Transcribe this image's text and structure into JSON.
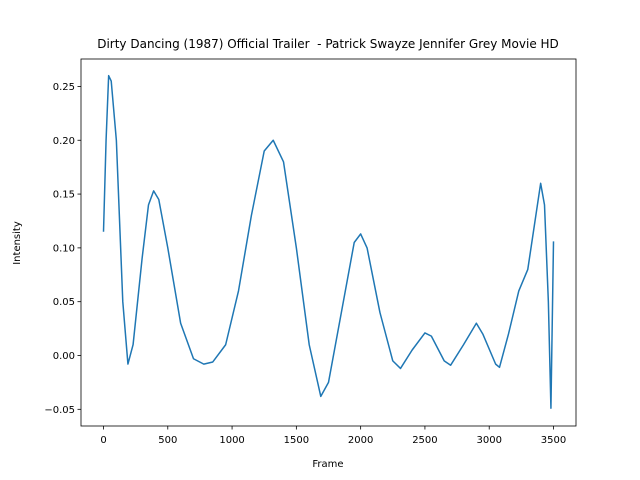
{
  "chart_data": {
    "type": "line",
    "title": "Dirty Dancing (1987) Official Trailer  - Patrick Swayze Jennifer Grey Movie HD",
    "xlabel": "Frame",
    "ylabel": "Intensity",
    "x": [
      0,
      20,
      40,
      60,
      100,
      150,
      190,
      230,
      300,
      350,
      390,
      430,
      500,
      600,
      700,
      780,
      850,
      950,
      1050,
      1150,
      1250,
      1320,
      1400,
      1500,
      1600,
      1690,
      1750,
      1850,
      1950,
      2000,
      2050,
      2150,
      2250,
      2310,
      2400,
      2500,
      2550,
      2650,
      2700,
      2800,
      2900,
      2950,
      3050,
      3080,
      3150,
      3230,
      3300,
      3350,
      3400,
      3430,
      3460,
      3480,
      3500
    ],
    "series": [
      {
        "name": "Intensity",
        "color": "#1f77b4",
        "values": [
          0.115,
          0.2,
          0.26,
          0.255,
          0.2,
          0.05,
          -0.008,
          0.01,
          0.09,
          0.14,
          0.153,
          0.145,
          0.1,
          0.03,
          -0.003,
          -0.008,
          -0.006,
          0.01,
          0.06,
          0.13,
          0.19,
          0.2,
          0.18,
          0.1,
          0.01,
          -0.038,
          -0.025,
          0.04,
          0.105,
          0.113,
          0.1,
          0.04,
          -0.005,
          -0.012,
          0.005,
          0.021,
          0.018,
          -0.005,
          -0.009,
          0.01,
          0.03,
          0.02,
          -0.008,
          -0.011,
          0.02,
          0.06,
          0.08,
          0.12,
          0.16,
          0.14,
          0.05,
          -0.049,
          0.106
        ]
      }
    ],
    "xlim": [
      -175,
      3675
    ],
    "ylim": [
      -0.0655,
      0.2755
    ],
    "xticks": [
      0,
      500,
      1000,
      1500,
      2000,
      2500,
      3000,
      3500
    ],
    "yticks": [
      {
        "value": -0.05,
        "label": "−0.05"
      },
      {
        "value": 0,
        "label": "0.00"
      },
      0.05,
      {
        "value": 0.1,
        "label": "0.10"
      },
      0.15,
      {
        "value": 0.2,
        "label": "0.20"
      },
      0.25
    ]
  }
}
